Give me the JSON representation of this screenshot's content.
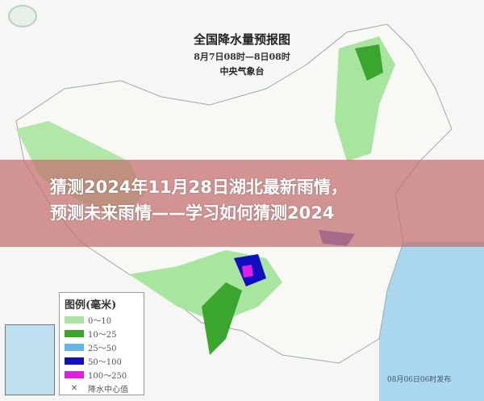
{
  "map": {
    "title": "全国降水量预报图",
    "period": "8月7日08时—8日08时",
    "issuer": "中央气象台",
    "published": "08月06日06时发布"
  },
  "banner": {
    "line1": "猜测2024年11月28日湖北最新雨情，",
    "line2": "预测未来雨情——学习如何猜测2024"
  },
  "legend": {
    "title": "图例(毫米)",
    "items": [
      {
        "label": "0～10",
        "color": "#a8e6a0"
      },
      {
        "label": "10～25",
        "color": "#3aa62e"
      },
      {
        "label": "25～50",
        "color": "#66b8e8"
      },
      {
        "label": "50～100",
        "color": "#1010c0"
      },
      {
        "label": "100～250",
        "color": "#e020e0"
      }
    ],
    "center_label": "降水中心值"
  }
}
